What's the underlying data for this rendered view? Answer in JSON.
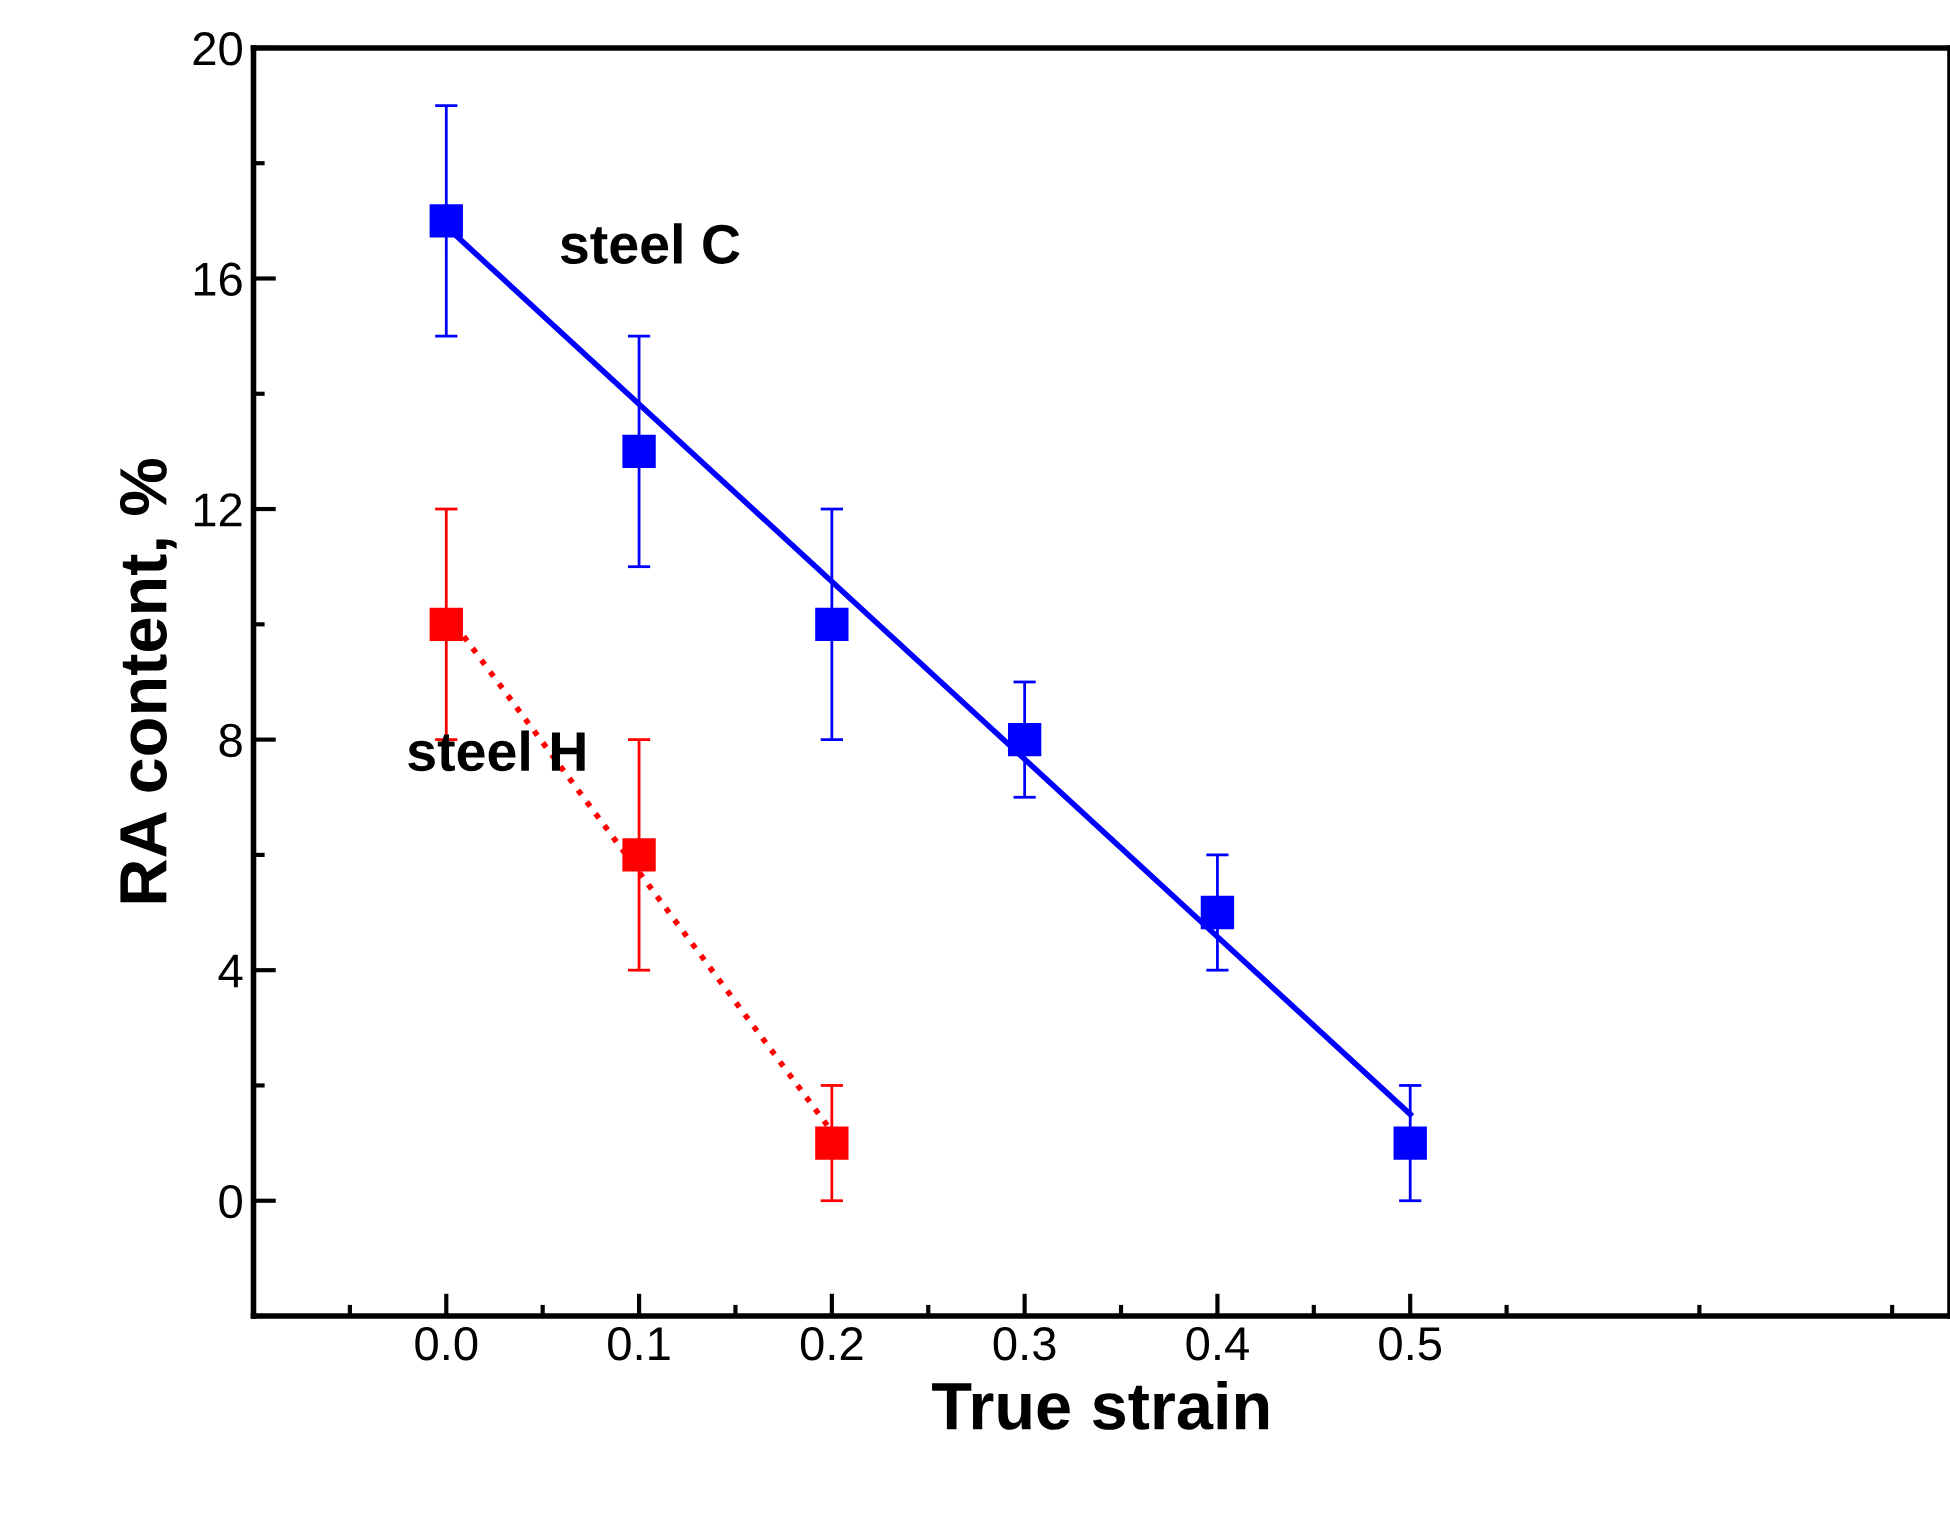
{
  "chart_data": {
    "type": "scatter",
    "xlabel": "True strain",
    "ylabel": "RA content, %",
    "series": [
      {
        "color": "#0000ff",
        "x": [
          0.0,
          0.1,
          0.2,
          0.3,
          0.4,
          0.5
        ],
        "values": [
          17,
          13,
          10,
          8,
          5,
          1
        ],
        "errors": [
          2,
          2,
          2,
          1,
          1,
          1
        ],
        "marker": "square"
      },
      {
        "type": "line",
        "color": "#0000ff",
        "x": [
          0.0,
          0.5
        ],
        "values": [
          16.9,
          1.5
        ],
        "line_style": "solid"
      },
      {
        "color": "#ff0000",
        "x": [
          0.0,
          0.1,
          0.2
        ],
        "values": [
          10,
          6,
          1
        ],
        "errors": [
          2,
          2,
          1
        ],
        "marker": "square"
      },
      {
        "type": "line",
        "color": "#ff0000",
        "x": [
          0.0,
          0.2
        ],
        "values": [
          10.2,
          1.2
        ],
        "line_style": "dotted"
      }
    ],
    "annotations": [
      "steel C",
      "steel H"
    ],
    "xlim": [
      -0.1,
      0.78
    ],
    "xticks": [
      {
        "value": 0.0,
        "label": "0.0"
      },
      0.1,
      0.2,
      0.3,
      0.4,
      0.5
    ],
    "ylim": [
      -2,
      20
    ],
    "yticks": [
      0,
      4,
      8,
      12,
      16,
      20
    ],
    "grid": false,
    "legend": false
  }
}
